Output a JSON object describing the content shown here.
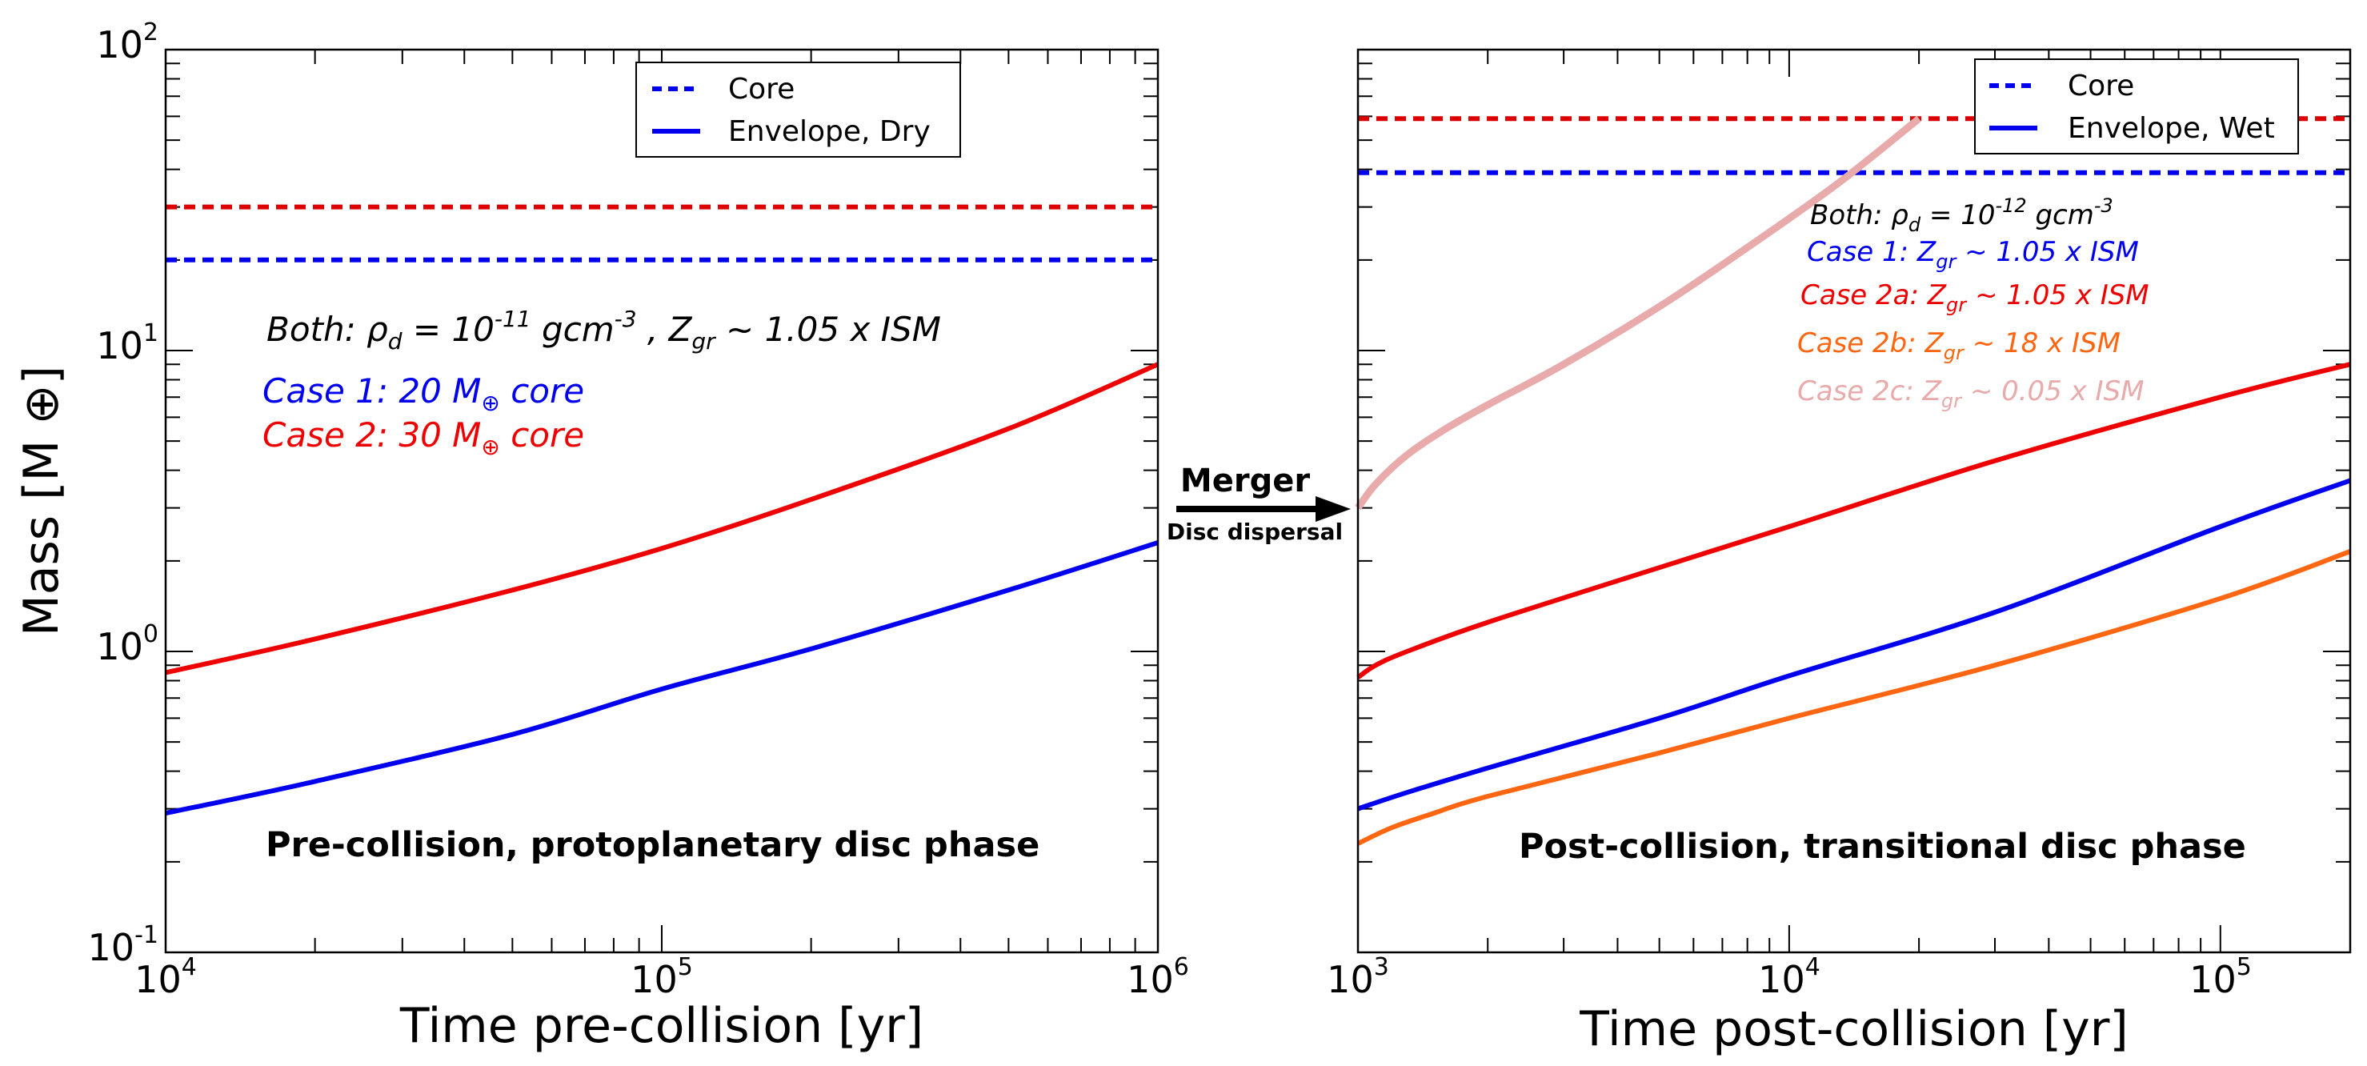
{
  "chart_data": [
    {
      "type": "line",
      "panel": "left",
      "xlabel": "Time pre-collision [yr]",
      "ylabel": "Mass [M ⊕]",
      "xscale": "log",
      "yscale": "log",
      "xlim": [
        10000,
        1000000
      ],
      "ylim": [
        0.1,
        100
      ],
      "x_ticks": [
        {
          "value": 10000,
          "base": "10",
          "exp": "4"
        },
        {
          "value": 100000,
          "base": "10",
          "exp": "5"
        },
        {
          "value": 1000000,
          "base": "10",
          "exp": "6"
        }
      ],
      "y_ticks": [
        {
          "value": 0.1,
          "base": "10",
          "exp": "-1"
        },
        {
          "value": 1,
          "base": "10",
          "exp": "0"
        },
        {
          "value": 10,
          "base": "10",
          "exp": "1"
        },
        {
          "value": 100,
          "base": "10",
          "exp": "2"
        }
      ],
      "legend": {
        "placement": "top-center",
        "entries": [
          {
            "label": "Core",
            "style": "dashed",
            "color": "#0000ee"
          },
          {
            "label": "Envelope, Dry",
            "style": "solid",
            "color": "#0000ee"
          }
        ]
      },
      "series": [
        {
          "name": "Case 2 core",
          "style": "dashed",
          "color": "#dd0000",
          "x": [
            10000,
            1000000
          ],
          "y": [
            30,
            30
          ]
        },
        {
          "name": "Case 1 core",
          "style": "dashed",
          "color": "#0000ee",
          "x": [
            10000,
            1000000
          ],
          "y": [
            20,
            20
          ]
        },
        {
          "name": "Case 2 envelope",
          "style": "solid",
          "color": "#ee0000",
          "x": [
            10000,
            20000,
            50000,
            100000,
            200000,
            500000,
            1000000
          ],
          "y": [
            0.85,
            1.1,
            1.6,
            2.2,
            3.2,
            5.5,
            9.0
          ]
        },
        {
          "name": "Case 1 envelope",
          "style": "solid",
          "color": "#0000ee",
          "x": [
            10000,
            20000,
            50000,
            100000,
            200000,
            500000,
            1000000
          ],
          "y": [
            0.29,
            0.37,
            0.53,
            0.75,
            1.02,
            1.6,
            2.3
          ]
        }
      ],
      "annotations": {
        "both": {
          "pre": "Both: ρ",
          "sub1": "d",
          "mid1": " = 10",
          "sup": "-11",
          "mid2": " gcm",
          "sup2": "-3",
          "mid3": " , Z",
          "sub2": "gr",
          "post": " ~ 1.05 x ISM"
        },
        "case1": {
          "pre": "Case 1: 20 M",
          "sub": "⊕",
          "post": " core",
          "color": "#0000ee"
        },
        "case2": {
          "pre": "Case 2: 30 M",
          "sub": "⊕",
          "post": " core",
          "color": "#ee0000"
        },
        "phase": "Pre-collision, protoplanetary disc phase"
      }
    },
    {
      "type": "line",
      "panel": "right",
      "xlabel": "Time post-collision [yr]",
      "xscale": "log",
      "yscale": "log",
      "xlim": [
        1000,
        200000
      ],
      "ylim": [
        0.1,
        100
      ],
      "x_ticks": [
        {
          "value": 1000,
          "base": "10",
          "exp": "3"
        },
        {
          "value": 10000,
          "base": "10",
          "exp": "4"
        },
        {
          "value": 100000,
          "base": "10",
          "exp": "5"
        }
      ],
      "legend": {
        "placement": "top-right",
        "entries": [
          {
            "label": "Core",
            "style": "dashed",
            "color": "#0000ee"
          },
          {
            "label": "Envelope, Wet",
            "style": "solid",
            "color": "#0000ee"
          }
        ]
      },
      "series": [
        {
          "name": "Case 2 core",
          "style": "dashed",
          "color": "#dd0000",
          "x": [
            1000,
            200000
          ],
          "y": [
            59,
            59
          ]
        },
        {
          "name": "Case 1 core",
          "style": "dashed",
          "color": "#0000ee",
          "x": [
            1000,
            200000
          ],
          "y": [
            39,
            39
          ]
        },
        {
          "name": "Case 2c envelope",
          "style": "solid",
          "color": "#e8aaaa",
          "x": [
            1000,
            1100,
            1300,
            1600,
            2000,
            3000,
            5000,
            8000,
            13000,
            20000
          ],
          "y": [
            3.0,
            3.6,
            4.5,
            5.5,
            6.6,
            9.0,
            14,
            22,
            36,
            59
          ]
        },
        {
          "name": "Case 2a envelope",
          "style": "solid",
          "color": "#ee0000",
          "x": [
            1000,
            1100,
            1300,
            2000,
            5000,
            10000,
            30000,
            100000,
            200000
          ],
          "y": [
            0.82,
            0.9,
            1.0,
            1.25,
            1.9,
            2.6,
            4.3,
            7.0,
            9.0
          ]
        },
        {
          "name": "Case 1 envelope",
          "style": "solid",
          "color": "#0000ee",
          "x": [
            1000,
            1300,
            2000,
            5000,
            10000,
            30000,
            100000,
            200000
          ],
          "y": [
            0.3,
            0.34,
            0.41,
            0.6,
            0.83,
            1.35,
            2.6,
            3.7
          ]
        },
        {
          "name": "Case 2b envelope",
          "style": "solid",
          "color": "#ff6611",
          "x": [
            1000,
            1200,
            1500,
            2000,
            5000,
            10000,
            30000,
            100000,
            200000
          ],
          "y": [
            0.23,
            0.26,
            0.29,
            0.33,
            0.46,
            0.6,
            0.9,
            1.5,
            2.15
          ]
        }
      ],
      "annotations": {
        "both": {
          "pre": "Both: ρ",
          "sub1": "d",
          "mid1": " = 10",
          "sup": "-12",
          "post": " gcm",
          "sup2": "-3"
        },
        "case1": {
          "pre": "Case 1: Z",
          "sub": "gr",
          "post": " ~ 1.05 x ISM",
          "color": "#0000ee"
        },
        "case2a": {
          "pre": "Case 2a: Z",
          "sub": "gr",
          "post": " ~ 1.05 x ISM",
          "color": "#ee0000"
        },
        "case2b": {
          "pre": "Case 2b: Z",
          "sub": "gr",
          "post": " ~ 18 x ISM",
          "color": "#ff6611"
        },
        "case2c": {
          "pre": "Case 2c: Z",
          "sub": "gr",
          "post": " ~ 0.05 x ISM",
          "color": "#e8aaaa"
        },
        "phase": "Post-collision, transitional disc phase"
      }
    }
  ],
  "arrow": {
    "title": "Merger",
    "subtitle": "Disc dispersal"
  }
}
